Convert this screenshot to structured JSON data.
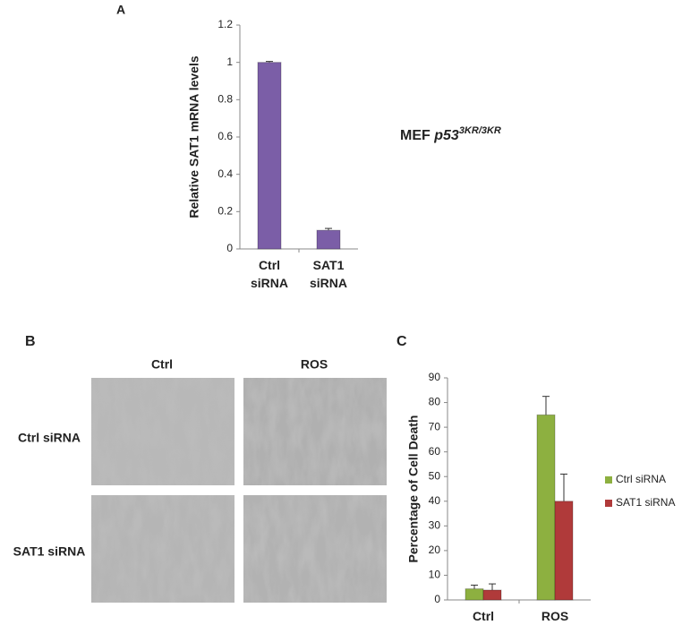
{
  "panel_labels": [
    "A",
    "B",
    "C"
  ],
  "annotation": {
    "text": "MEF",
    "gene": "p53",
    "superscript": "3KR/3KR"
  },
  "panel_b": {
    "columns": [
      "Ctrl",
      "ROS"
    ],
    "rows": [
      "Ctrl siRNA",
      "SAT1 siRNA"
    ]
  },
  "chart_data": [
    {
      "type": "bar",
      "ylabel": "Relative SAT1 mRNA levels",
      "categories": [
        "Ctrl siRNA",
        "SAT1 siRNA"
      ],
      "values": [
        1.0,
        0.1
      ],
      "errors": [
        0.005,
        0.01
      ],
      "color": "#7b5ea7",
      "ylim": [
        0,
        1.2
      ],
      "yticks": [
        0,
        0.2,
        0.4,
        0.6,
        0.8,
        1,
        1.2
      ]
    },
    {
      "type": "bar",
      "ylabel": "Percentage of Cell Death",
      "categories": [
        "Ctrl",
        "ROS"
      ],
      "series": [
        {
          "name": "Ctrl siRNA",
          "color": "#8db040",
          "values": [
            4.5,
            75
          ],
          "errors": [
            1.5,
            7.5
          ]
        },
        {
          "name": "SAT1 siRNA",
          "color": "#b03a3a",
          "values": [
            4,
            40
          ],
          "errors": [
            2.5,
            11
          ]
        }
      ],
      "ylim": [
        0,
        90
      ],
      "yticks": [
        0,
        10,
        20,
        30,
        40,
        50,
        60,
        70,
        80,
        90
      ],
      "legend": "right"
    }
  ]
}
